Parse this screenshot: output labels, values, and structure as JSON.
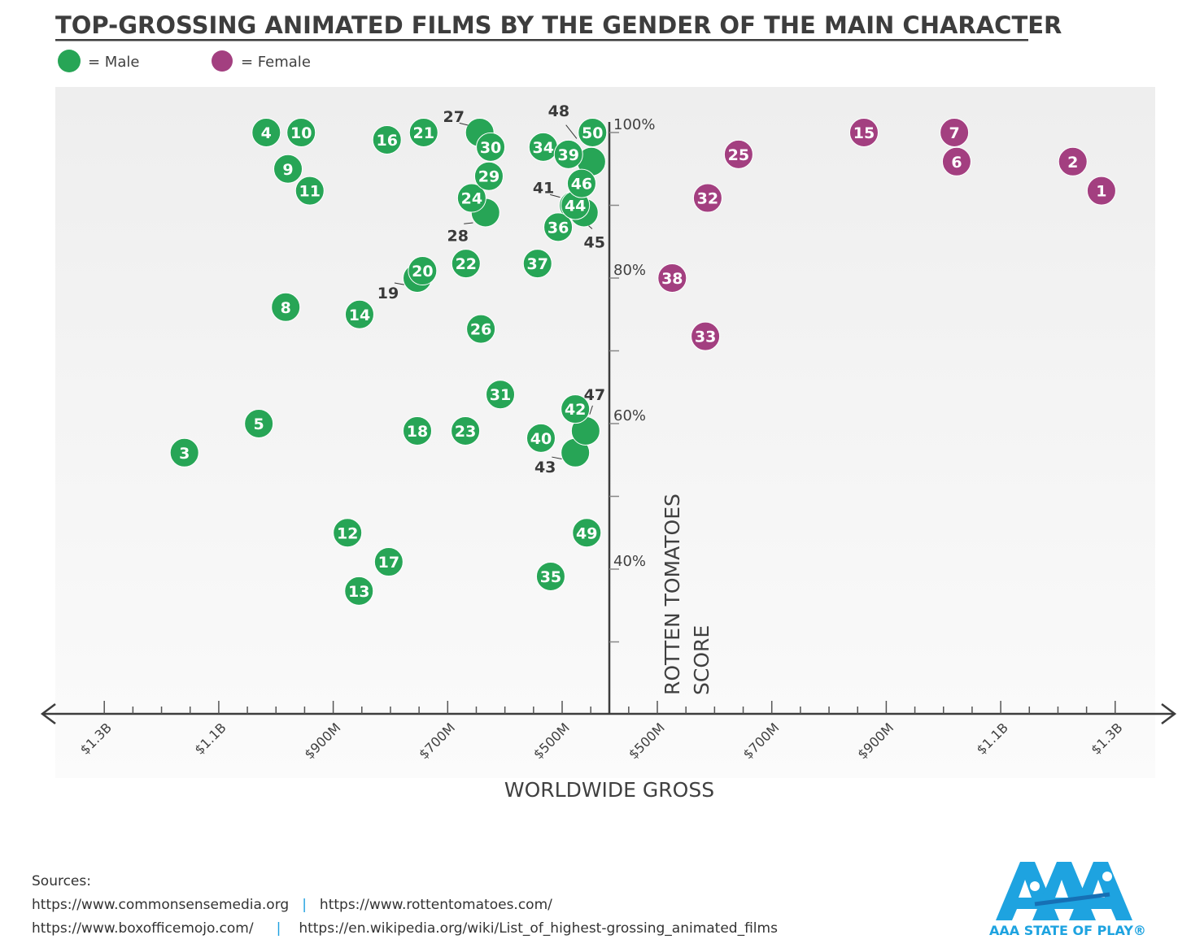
{
  "title": "TOP-GROSSING ANIMATED FILMS BY THE GENDER OF THE MAIN CHARACTER",
  "legend": [
    {
      "label": "= Male",
      "color": "#27a556"
    },
    {
      "label": "= Female",
      "color": "#a33f80"
    }
  ],
  "chart_data": {
    "type": "scatter",
    "title": "TOP-GROSSING ANIMATED FILMS BY THE GENDER OF THE MAIN CHARACTER",
    "xlabel": "WORLDWIDE GROSS",
    "ylabel": "ROTTEN TOMATOES SCORE",
    "ylabel_lines": [
      "ROTTEN TOMATOES",
      "SCORE"
    ],
    "x_unit": "USD millions (mirrored: male to the left, female to the right)",
    "x_tick_labels": [
      "$500M",
      "$700M",
      "$900M",
      "$1.1B",
      "$1.3B"
    ],
    "x_tick_values": [
      500,
      700,
      900,
      1100,
      1300
    ],
    "y_tick_labels": [
      "100%",
      "80%",
      "60%",
      "40%"
    ],
    "y_tick_values": [
      100,
      80,
      60,
      40
    ],
    "ylim": [
      20,
      100
    ],
    "grid": false,
    "legend_position": "top-left",
    "series": [
      {
        "name": "Male",
        "color": "#27a556",
        "points": [
          {
            "rank": 3,
            "gross": 1160,
            "score": 56
          },
          {
            "rank": 4,
            "gross": 1017,
            "score": 100
          },
          {
            "rank": 5,
            "gross": 1030,
            "score": 60
          },
          {
            "rank": 8,
            "gross": 983,
            "score": 76
          },
          {
            "rank": 9,
            "gross": 979,
            "score": 95
          },
          {
            "rank": 10,
            "gross": 956,
            "score": 100
          },
          {
            "rank": 11,
            "gross": 941,
            "score": 92
          },
          {
            "rank": 12,
            "gross": 875,
            "score": 45
          },
          {
            "rank": 13,
            "gross": 855,
            "score": 37
          },
          {
            "rank": 14,
            "gross": 854,
            "score": 75
          },
          {
            "rank": 16,
            "gross": 806,
            "score": 99
          },
          {
            "rank": 17,
            "gross": 803,
            "score": 41
          },
          {
            "rank": 18,
            "gross": 753,
            "score": 59
          },
          {
            "rank": 19,
            "gross": 753,
            "score": 80
          },
          {
            "rank": 20,
            "gross": 744,
            "score": 81
          },
          {
            "rank": 21,
            "gross": 742,
            "score": 100
          },
          {
            "rank": 22,
            "gross": 668,
            "score": 82
          },
          {
            "rank": 23,
            "gross": 669,
            "score": 59
          },
          {
            "rank": 24,
            "gross": 658,
            "score": 91
          },
          {
            "rank": 26,
            "gross": 642,
            "score": 73
          },
          {
            "rank": 27,
            "gross": 644,
            "score": 100
          },
          {
            "rank": 28,
            "gross": 634,
            "score": 89
          },
          {
            "rank": 29,
            "gross": 628,
            "score": 94
          },
          {
            "rank": 30,
            "gross": 625,
            "score": 98
          },
          {
            "rank": 31,
            "gross": 608,
            "score": 64
          },
          {
            "rank": 34,
            "gross": 533,
            "score": 98
          },
          {
            "rank": 35,
            "gross": 520,
            "score": 39
          },
          {
            "rank": 36,
            "gross": 507,
            "score": 87
          },
          {
            "rank": 37,
            "gross": 543,
            "score": 82
          },
          {
            "rank": 39,
            "gross": 489,
            "score": 97
          },
          {
            "rank": 40,
            "gross": 537,
            "score": 58
          },
          {
            "rank": 41,
            "gross": 480,
            "score": 90
          },
          {
            "rank": 42,
            "gross": 477,
            "score": 62
          },
          {
            "rank": 43,
            "gross": 477,
            "score": 56
          },
          {
            "rank": 44,
            "gross": 477,
            "score": 90
          },
          {
            "rank": 45,
            "gross": 462,
            "score": 89
          },
          {
            "rank": 46,
            "gross": 466,
            "score": 93
          },
          {
            "rank": 47,
            "gross": 459,
            "score": 59
          },
          {
            "rank": 48,
            "gross": 449,
            "score": 96
          },
          {
            "rank": 49,
            "gross": 457,
            "score": 45
          },
          {
            "rank": 50,
            "gross": 447,
            "score": 100
          }
        ]
      },
      {
        "name": "Female",
        "color": "#a33f80",
        "points": [
          {
            "rank": 1,
            "gross": 1276,
            "score": 92
          },
          {
            "rank": 2,
            "gross": 1226,
            "score": 96
          },
          {
            "rank": 6,
            "gross": 1023,
            "score": 96
          },
          {
            "rank": 7,
            "gross": 1019,
            "score": 100
          },
          {
            "rank": 15,
            "gross": 861,
            "score": 100
          },
          {
            "rank": 25,
            "gross": 642,
            "score": 97
          },
          {
            "rank": 32,
            "gross": 588,
            "score": 91
          },
          {
            "rank": 33,
            "gross": 584,
            "score": 72
          },
          {
            "rank": 38,
            "gross": 526,
            "score": 80
          }
        ]
      }
    ]
  },
  "sources": {
    "heading": "Sources:",
    "line1": [
      "https://www.commonsensemedia.org",
      "https://www.rottentomatoes.com/"
    ],
    "line2": [
      "https://www.boxofficemojo.com/",
      "https://en.wikipedia.org/wiki/List_of_highest-grossing_animated_films"
    ],
    "separator": "|"
  },
  "logo": {
    "text": "AAA STATE OF PLAY®",
    "color": "#1ea3e0"
  }
}
